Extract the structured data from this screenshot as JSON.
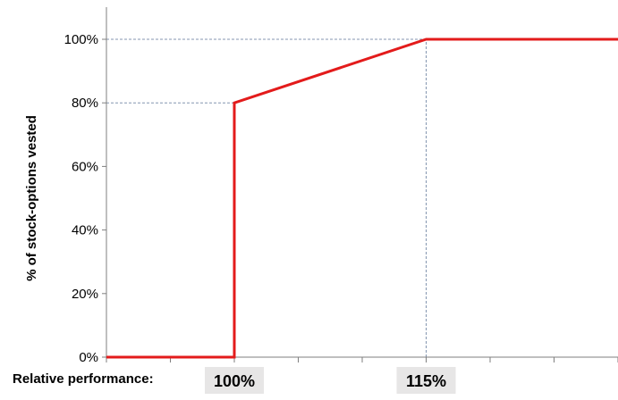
{
  "chart_data": {
    "type": "line",
    "title": "",
    "ylabel": "% of stock-options vested",
    "xlabel": "Relative performance:",
    "ylim": [
      0,
      100
    ],
    "yticks": [
      0,
      20,
      40,
      60,
      80,
      100
    ],
    "ytick_labels": [
      "0%",
      "20%",
      "40%",
      "60%",
      "80%",
      "100%"
    ],
    "grid": false,
    "legend": "none",
    "x_categories_count": 8,
    "highlighted_x_labels": [
      {
        "label": "100%",
        "x_index": 2
      },
      {
        "label": "115%",
        "x_index": 5
      }
    ],
    "series": [
      {
        "color": "#e31b1b",
        "points": [
          {
            "x_index": 0,
            "y": 0
          },
          {
            "x_index": 2,
            "y": 0
          },
          {
            "x_index": 2,
            "y": 80
          },
          {
            "x_index": 5,
            "y": 100
          },
          {
            "x_index": 8,
            "y": 100
          }
        ]
      }
    ],
    "reference_lines": [
      {
        "axis": "y",
        "value": 80,
        "to_x_index": 2
      },
      {
        "axis": "y",
        "value": 100,
        "to_x_index": 5
      },
      {
        "axis": "x",
        "x_index": 5,
        "from_y": 0,
        "to_y": 100
      }
    ],
    "colors": {
      "line": "#e31b1b",
      "axis": "#7f7f7f",
      "reference": "#8496b0",
      "label_box": "#e7e6e6",
      "text": "#000000"
    }
  }
}
